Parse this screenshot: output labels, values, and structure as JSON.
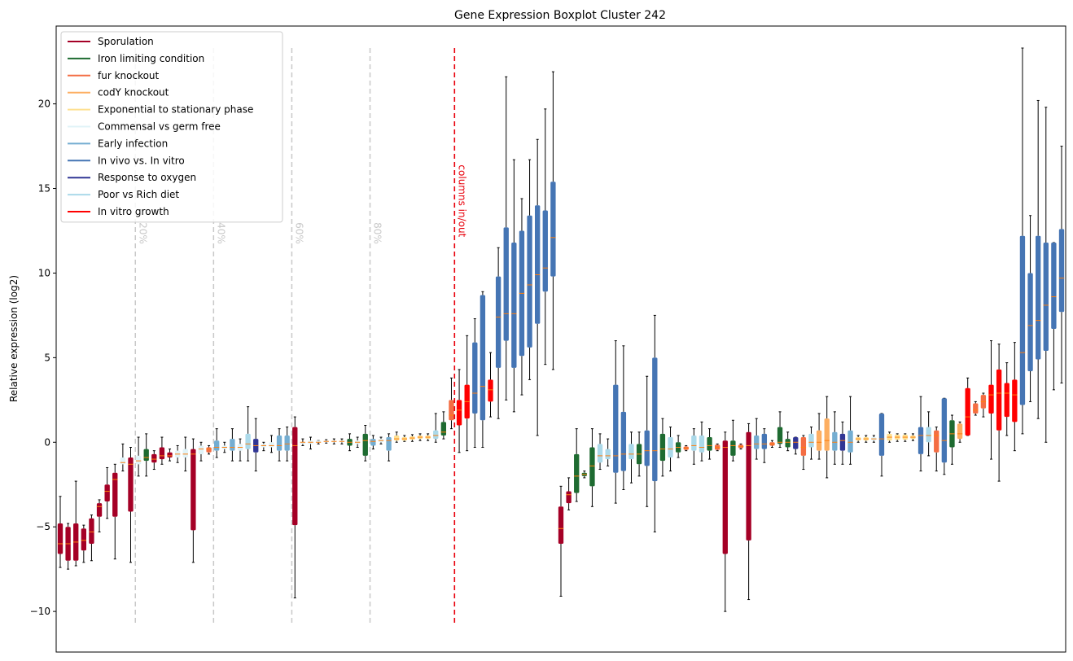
{
  "chart_data": {
    "type": "boxplot",
    "title": "Gene Expression Boxplot Cluster 242",
    "ylabel": "Relative expression (log2)",
    "ylim": [
      -12.4,
      24.6
    ],
    "yticks": [
      -10,
      -5,
      0,
      5,
      10,
      15,
      20
    ],
    "ytick_labels": [
      "−10",
      "−5",
      "0",
      "5",
      "10",
      "15",
      "20"
    ],
    "percentile_lines": [
      {
        "label": "20%",
        "at_box": 9.6
      },
      {
        "label": "40%",
        "at_box": 19.6
      },
      {
        "label": "60%",
        "at_box": 29.6
      },
      {
        "label": "80%",
        "at_box": 39.6
      }
    ],
    "split_line": {
      "label": "columns in/out",
      "at_box": 50.4,
      "color": "#e8000b"
    },
    "legend": {
      "placement": "top-left",
      "entries": [
        {
          "label": "Sporulation",
          "color": "#a50026"
        },
        {
          "label": "Iron limiting condition",
          "color": "#1e6b31"
        },
        {
          "label": "fur knockout",
          "color": "#f46d43"
        },
        {
          "label": "codY knockout",
          "color": "#fdae61"
        },
        {
          "label": "Exponential to stationary phase",
          "color": "#fee090"
        },
        {
          "label": "Commensal vs germ free",
          "color": "#e0f3f8"
        },
        {
          "label": "Early infection",
          "color": "#74add1"
        },
        {
          "label": "In vivo vs. In vitro",
          "color": "#4575b4"
        },
        {
          "label": "Response to oxygen",
          "color": "#313695"
        },
        {
          "label": "Poor vs Rich diet",
          "color": "#abd9e9"
        },
        {
          "label": "In vitro growth",
          "color": "#ff0000"
        }
      ]
    },
    "median_color": "#ff7f0e",
    "boxes": [
      {
        "c": "#a50026",
        "q1": -6.6,
        "med": -6.0,
        "q3": -4.8,
        "lo": -7.4,
        "hi": -3.2
      },
      {
        "c": "#a50026",
        "q1": -7.0,
        "med": -6.0,
        "q3": -5.0,
        "lo": -7.5,
        "hi": -4.8
      },
      {
        "c": "#a50026",
        "q1": -7.0,
        "med": -5.9,
        "q3": -4.8,
        "lo": -7.3,
        "hi": -2.3
      },
      {
        "c": "#a50026",
        "q1": -6.4,
        "med": -5.8,
        "q3": -5.1,
        "lo": -7.1,
        "hi": -4.9
      },
      {
        "c": "#a50026",
        "q1": -6.0,
        "med": -5.3,
        "q3": -4.5,
        "lo": -7.0,
        "hi": -4.3
      },
      {
        "c": "#a50026",
        "q1": -4.4,
        "med": -3.8,
        "q3": -3.6,
        "lo": -5.3,
        "hi": -3.4
      },
      {
        "c": "#a50026",
        "q1": -3.5,
        "med": -2.9,
        "q3": -2.5,
        "lo": -4.5,
        "hi": -1.5
      },
      {
        "c": "#a50026",
        "q1": -4.4,
        "med": -2.2,
        "q3": -1.8,
        "lo": -6.9,
        "hi": -1.3
      },
      {
        "c": "#e0f3f8",
        "q1": -1.3,
        "med": -1.2,
        "q3": -0.9,
        "lo": -1.7,
        "hi": -0.1
      },
      {
        "c": "#a50026",
        "q1": -4.1,
        "med": -1.3,
        "q3": -0.9,
        "lo": -7.1,
        "hi": -0.3
      },
      {
        "c": "#e0f3f8",
        "q1": -1.3,
        "med": -1.1,
        "q3": -0.8,
        "lo": -2.0,
        "hi": 0.3
      },
      {
        "c": "#1e6b31",
        "q1": -1.1,
        "med": -0.9,
        "q3": -0.4,
        "lo": -2.0,
        "hi": 0.5
      },
      {
        "c": "#a50026",
        "q1": -1.2,
        "med": -1.0,
        "q3": -0.7,
        "lo": -1.6,
        "hi": -0.5
      },
      {
        "c": "#a50026",
        "q1": -1.0,
        "med": -0.8,
        "q3": -0.3,
        "lo": -1.3,
        "hi": 0.3
      },
      {
        "c": "#a50026",
        "q1": -0.9,
        "med": -0.8,
        "q3": -0.6,
        "lo": -1.1,
        "hi": -0.4
      },
      {
        "c": "#e0f3f8",
        "q1": -0.9,
        "med": -0.7,
        "q3": -0.5,
        "lo": -1.2,
        "hi": -0.2
      },
      {
        "c": "#e0f3f8",
        "q1": -0.9,
        "med": -0.7,
        "q3": -0.4,
        "lo": -1.7,
        "hi": 0.3
      },
      {
        "c": "#a50026",
        "q1": -5.2,
        "med": -0.7,
        "q3": -0.4,
        "lo": -7.1,
        "hi": 0.2
      },
      {
        "c": "#e0f3f8",
        "q1": -0.7,
        "med": -0.4,
        "q3": -0.2,
        "lo": -1.1,
        "hi": 0.0
      },
      {
        "c": "#f46d43",
        "q1": -0.6,
        "med": -0.4,
        "q3": -0.3,
        "lo": -0.7,
        "hi": -0.2
      },
      {
        "c": "#74add1",
        "q1": -0.5,
        "med": -0.3,
        "q3": 0.1,
        "lo": -0.9,
        "hi": 0.8
      },
      {
        "c": "#e0f3f8",
        "q1": -0.4,
        "med": -0.3,
        "q3": -0.2,
        "lo": -0.6,
        "hi": 0.0
      },
      {
        "c": "#74add1",
        "q1": -0.5,
        "med": -0.3,
        "q3": 0.2,
        "lo": -1.1,
        "hi": 0.8
      },
      {
        "c": "#e0f3f8",
        "q1": -0.5,
        "med": -0.3,
        "q3": -0.1,
        "lo": -1.1,
        "hi": 0.2
      },
      {
        "c": "#abd9e9",
        "q1": -0.4,
        "med": -0.1,
        "q3": 0.5,
        "lo": -1.1,
        "hi": 2.1
      },
      {
        "c": "#313695",
        "q1": -0.6,
        "med": -0.2,
        "q3": 0.2,
        "lo": -1.7,
        "hi": 1.4
      },
      {
        "c": "#e0f3f8",
        "q1": -0.3,
        "med": -0.2,
        "q3": -0.1,
        "lo": -0.5,
        "hi": 0.0
      },
      {
        "c": "#e0f3f8",
        "q1": -0.3,
        "med": -0.2,
        "q3": 0.0,
        "lo": -0.6,
        "hi": 0.4
      },
      {
        "c": "#74add1",
        "q1": -0.5,
        "med": -0.2,
        "q3": 0.4,
        "lo": -1.1,
        "hi": 0.8
      },
      {
        "c": "#74add1",
        "q1": -0.5,
        "med": -0.1,
        "q3": 0.4,
        "lo": -1.1,
        "hi": 0.9
      },
      {
        "c": "#a50026",
        "q1": -4.9,
        "med": -0.2,
        "q3": 0.9,
        "lo": -9.2,
        "hi": 1.5
      },
      {
        "c": "#e0f3f8",
        "q1": -0.1,
        "med": 0.0,
        "q3": 0.0,
        "lo": -0.2,
        "hi": 0.2
      },
      {
        "c": "#e0f3f8",
        "q1": -0.1,
        "med": 0.0,
        "q3": 0.1,
        "lo": -0.4,
        "hi": 0.3
      },
      {
        "c": "#e0f3f8",
        "q1": 0.0,
        "med": 0.0,
        "q3": 0.1,
        "lo": -0.1,
        "hi": 0.1
      },
      {
        "c": "#e0f3f8",
        "q1": 0.0,
        "med": 0.05,
        "q3": 0.1,
        "lo": -0.05,
        "hi": 0.15
      },
      {
        "c": "#e0f3f8",
        "q1": 0.0,
        "med": 0.05,
        "q3": 0.1,
        "lo": -0.1,
        "hi": 0.2
      },
      {
        "c": "#e0f3f8",
        "q1": 0.0,
        "med": 0.05,
        "q3": 0.1,
        "lo": -0.1,
        "hi": 0.2
      },
      {
        "c": "#1e6b31",
        "q1": -0.2,
        "med": 0.0,
        "q3": 0.2,
        "lo": -0.5,
        "hi": 0.5
      },
      {
        "c": "#e0f3f8",
        "q1": -0.1,
        "med": 0.0,
        "q3": 0.1,
        "lo": -0.3,
        "hi": 0.3
      },
      {
        "c": "#1e6b31",
        "q1": -0.8,
        "med": 0.1,
        "q3": 0.5,
        "lo": -1.1,
        "hi": 1.0
      },
      {
        "c": "#74add1",
        "q1": -0.2,
        "med": 0.05,
        "q3": 0.2,
        "lo": -0.4,
        "hi": 0.4
      },
      {
        "c": "#e0f3f8",
        "q1": 0.0,
        "med": 0.1,
        "q3": 0.2,
        "lo": -0.1,
        "hi": 0.3
      },
      {
        "c": "#74add1",
        "q1": -0.5,
        "med": 0.1,
        "q3": 0.3,
        "lo": -1.1,
        "hi": 0.5
      },
      {
        "c": "#fee090",
        "q1": 0.1,
        "med": 0.2,
        "q3": 0.4,
        "lo": 0.0,
        "hi": 0.6
      },
      {
        "c": "#fee090",
        "q1": 0.1,
        "med": 0.2,
        "q3": 0.3,
        "lo": 0.05,
        "hi": 0.4
      },
      {
        "c": "#fee090",
        "q1": 0.15,
        "med": 0.25,
        "q3": 0.35,
        "lo": 0.05,
        "hi": 0.45
      },
      {
        "c": "#fee090",
        "q1": 0.2,
        "med": 0.3,
        "q3": 0.4,
        "lo": 0.1,
        "hi": 0.5
      },
      {
        "c": "#fee090",
        "q1": 0.2,
        "med": 0.3,
        "q3": 0.4,
        "lo": 0.1,
        "hi": 0.5
      },
      {
        "c": "#abd9e9",
        "q1": 0.2,
        "med": 0.4,
        "q3": 0.7,
        "lo": 0.0,
        "hi": 1.7
      },
      {
        "c": "#1e6b31",
        "q1": 0.4,
        "med": 0.6,
        "q3": 1.2,
        "lo": 0.2,
        "hi": 1.8
      },
      {
        "c": "#f46d43",
        "q1": 1.3,
        "med": 1.6,
        "q3": 2.5,
        "lo": 0.8,
        "hi": 3.8
      },
      {
        "c": "#ff0000",
        "q1": 1.0,
        "med": 1.9,
        "q3": 2.5,
        "lo": -0.6,
        "hi": 4.3
      },
      {
        "c": "#ff0000",
        "q1": 1.4,
        "med": 2.4,
        "q3": 3.4,
        "lo": -0.5,
        "hi": 6.3
      },
      {
        "c": "#4575b4",
        "q1": 1.7,
        "med": 2.9,
        "q3": 5.9,
        "lo": -0.3,
        "hi": 7.3
      },
      {
        "c": "#4575b4",
        "q1": 1.3,
        "med": 3.3,
        "q3": 8.7,
        "lo": -0.3,
        "hi": 8.9
      },
      {
        "c": "#ff0000",
        "q1": 2.4,
        "med": 3.1,
        "q3": 3.7,
        "lo": 1.5,
        "hi": 5.3
      },
      {
        "c": "#4575b4",
        "q1": 4.4,
        "med": 7.4,
        "q3": 9.8,
        "lo": 1.4,
        "hi": 11.5
      },
      {
        "c": "#4575b4",
        "q1": 6.0,
        "med": 7.6,
        "q3": 12.7,
        "lo": 2.5,
        "hi": 21.6
      },
      {
        "c": "#4575b4",
        "q1": 4.4,
        "med": 7.6,
        "q3": 11.8,
        "lo": 1.8,
        "hi": 16.7
      },
      {
        "c": "#4575b4",
        "q1": 5.1,
        "med": 8.8,
        "q3": 12.5,
        "lo": 2.8,
        "hi": 14.4
      },
      {
        "c": "#4575b4",
        "q1": 5.6,
        "med": 9.3,
        "q3": 13.4,
        "lo": 3.7,
        "hi": 16.7
      },
      {
        "c": "#4575b4",
        "q1": 7.0,
        "med": 9.9,
        "q3": 14.0,
        "lo": 0.4,
        "hi": 17.9
      },
      {
        "c": "#4575b4",
        "q1": 8.9,
        "med": 10.3,
        "q3": 13.7,
        "lo": 4.6,
        "hi": 19.7
      },
      {
        "c": "#4575b4",
        "q1": 9.8,
        "med": 12.1,
        "q3": 15.4,
        "lo": 4.3,
        "hi": 21.9
      },
      {
        "c": "#a50026",
        "q1": -6.0,
        "med": -5.1,
        "q3": -3.8,
        "lo": -9.1,
        "hi": -2.6
      },
      {
        "c": "#a50026",
        "q1": -3.6,
        "med": -3.1,
        "q3": -2.9,
        "lo": -4.0,
        "hi": -2.1
      },
      {
        "c": "#1e6b31",
        "q1": -3.0,
        "med": -2.0,
        "q3": -0.7,
        "lo": -3.5,
        "hi": 0.8
      },
      {
        "c": "#1e6b31",
        "q1": -2.0,
        "med": -1.9,
        "q3": -1.8,
        "lo": -2.1,
        "hi": -1.7
      },
      {
        "c": "#1e6b31",
        "q1": -2.6,
        "med": -1.4,
        "q3": -0.3,
        "lo": -3.8,
        "hi": 0.8
      },
      {
        "c": "#abd9e9",
        "q1": -1.2,
        "med": -0.8,
        "q3": -0.1,
        "lo": -1.6,
        "hi": 0.5
      },
      {
        "c": "#abd9e9",
        "q1": -1.0,
        "med": -0.8,
        "q3": -0.4,
        "lo": -1.4,
        "hi": 0.2
      },
      {
        "c": "#4575b4",
        "q1": -1.8,
        "med": -0.8,
        "q3": 3.4,
        "lo": -3.6,
        "hi": 6.0
      },
      {
        "c": "#4575b4",
        "q1": -1.7,
        "med": -0.7,
        "q3": 1.8,
        "lo": -2.8,
        "hi": 5.7
      },
      {
        "c": "#abd9e9",
        "q1": -1.0,
        "med": -0.7,
        "q3": -0.1,
        "lo": -2.4,
        "hi": 0.6
      },
      {
        "c": "#1e6b31",
        "q1": -1.3,
        "med": -0.7,
        "q3": -0.1,
        "lo": -2.0,
        "hi": 0.6
      },
      {
        "c": "#4575b4",
        "q1": -1.4,
        "med": -0.5,
        "q3": 0.7,
        "lo": -3.8,
        "hi": 3.9
      },
      {
        "c": "#4575b4",
        "q1": -2.3,
        "med": -0.5,
        "q3": 5.0,
        "lo": -5.3,
        "hi": 7.5
      },
      {
        "c": "#1e6b31",
        "q1": -1.1,
        "med": -0.4,
        "q3": 0.5,
        "lo": -2.0,
        "hi": 1.4
      },
      {
        "c": "#abd9e9",
        "q1": -0.9,
        "med": -0.4,
        "q3": 0.3,
        "lo": -1.7,
        "hi": 0.9
      },
      {
        "c": "#1e6b31",
        "q1": -0.6,
        "med": -0.3,
        "q3": 0.0,
        "lo": -0.9,
        "hi": 0.4
      },
      {
        "c": "#f46d43",
        "q1": -0.45,
        "med": -0.35,
        "q3": -0.25,
        "lo": -0.5,
        "hi": -0.2
      },
      {
        "c": "#abd9e9",
        "q1": -0.5,
        "med": -0.2,
        "q3": 0.4,
        "lo": -1.3,
        "hi": 0.8
      },
      {
        "c": "#abd9e9",
        "q1": -0.6,
        "med": -0.3,
        "q3": 0.4,
        "lo": -1.1,
        "hi": 1.2
      },
      {
        "c": "#1e6b31",
        "q1": -0.5,
        "med": -0.2,
        "q3": 0.3,
        "lo": -1.0,
        "hi": 0.8
      },
      {
        "c": "#f46d43",
        "q1": -0.45,
        "med": -0.3,
        "q3": -0.15,
        "lo": -0.5,
        "hi": -0.1
      },
      {
        "c": "#a50026",
        "q1": -6.6,
        "med": -0.3,
        "q3": 0.1,
        "lo": -10.0,
        "hi": 0.6
      },
      {
        "c": "#1e6b31",
        "q1": -0.8,
        "med": -0.2,
        "q3": 0.1,
        "lo": -1.1,
        "hi": 1.3
      },
      {
        "c": "#f46d43",
        "q1": -0.35,
        "med": -0.25,
        "q3": -0.15,
        "lo": -0.4,
        "hi": -0.1
      },
      {
        "c": "#a50026",
        "q1": -5.8,
        "med": -0.2,
        "q3": 0.6,
        "lo": -9.3,
        "hi": 1.1
      },
      {
        "c": "#74add1",
        "q1": -0.4,
        "med": -0.1,
        "q3": 0.4,
        "lo": -1.0,
        "hi": 1.4
      },
      {
        "c": "#4575b4",
        "q1": -0.4,
        "med": -0.1,
        "q3": 0.5,
        "lo": -1.2,
        "hi": 0.8
      },
      {
        "c": "#f46d43",
        "q1": -0.2,
        "med": -0.1,
        "q3": 0.0,
        "lo": -0.3,
        "hi": 0.1
      },
      {
        "c": "#1e6b31",
        "q1": -0.1,
        "med": 0.0,
        "q3": 0.9,
        "lo": -0.3,
        "hi": 1.8
      },
      {
        "c": "#1e6b31",
        "q1": -0.3,
        "med": 0.0,
        "q3": 0.2,
        "lo": -0.5,
        "hi": 0.6
      },
      {
        "c": "#313695",
        "q1": -0.4,
        "med": 0.0,
        "q3": 0.3,
        "lo": -0.7,
        "hi": 0.3
      },
      {
        "c": "#f46d43",
        "q1": -0.8,
        "med": -0.3,
        "q3": 0.3,
        "lo": -1.6,
        "hi": 0.4
      },
      {
        "c": "#abd9e9",
        "q1": -0.3,
        "med": 0.0,
        "q3": 0.5,
        "lo": -1.0,
        "hi": 0.9
      },
      {
        "c": "#fdae61",
        "q1": -0.5,
        "med": 0.0,
        "q3": 0.7,
        "lo": -1.0,
        "hi": 1.7
      },
      {
        "c": "#fdae61",
        "q1": -0.5,
        "med": 0.1,
        "q3": 1.4,
        "lo": -2.1,
        "hi": 2.7
      },
      {
        "c": "#74add1",
        "q1": -0.5,
        "med": 0.0,
        "q3": 0.6,
        "lo": -1.3,
        "hi": 1.8
      },
      {
        "c": "#313695",
        "q1": -0.5,
        "med": 0.1,
        "q3": 0.5,
        "lo": -1.3,
        "hi": 1.2
      },
      {
        "c": "#74add1",
        "q1": -0.6,
        "med": 0.0,
        "q3": 0.7,
        "lo": -1.3,
        "hi": 2.7
      },
      {
        "c": "#fee090",
        "q1": 0.1,
        "med": 0.2,
        "q3": 0.3,
        "lo": 0.0,
        "hi": 0.4
      },
      {
        "c": "#fee090",
        "q1": 0.1,
        "med": 0.2,
        "q3": 0.3,
        "lo": 0.0,
        "hi": 0.4
      },
      {
        "c": "#e0f3f8",
        "q1": 0.1,
        "med": 0.2,
        "q3": 0.3,
        "lo": 0.0,
        "hi": 0.4
      },
      {
        "c": "#4575b4",
        "q1": -0.8,
        "med": 0.2,
        "q3": 1.7,
        "lo": -2.0,
        "hi": 1.7
      },
      {
        "c": "#fee090",
        "q1": 0.1,
        "med": 0.3,
        "q3": 0.5,
        "lo": 0.0,
        "hi": 0.6
      },
      {
        "c": "#fee090",
        "q1": 0.15,
        "med": 0.3,
        "q3": 0.45,
        "lo": 0.05,
        "hi": 0.5
      },
      {
        "c": "#fee090",
        "q1": 0.15,
        "med": 0.3,
        "q3": 0.45,
        "lo": 0.05,
        "hi": 0.5
      },
      {
        "c": "#fee090",
        "q1": 0.2,
        "med": 0.3,
        "q3": 0.4,
        "lo": 0.1,
        "hi": 0.5
      },
      {
        "c": "#4575b4",
        "q1": -0.7,
        "med": 0.4,
        "q3": 0.9,
        "lo": -1.7,
        "hi": 2.7
      },
      {
        "c": "#abd9e9",
        "q1": 0.0,
        "med": 0.4,
        "q3": 0.9,
        "lo": -0.8,
        "hi": 1.8
      },
      {
        "c": "#f46d43",
        "q1": -0.6,
        "med": 0.4,
        "q3": 0.7,
        "lo": -1.7,
        "hi": 0.9
      },
      {
        "c": "#4575b4",
        "q1": -1.2,
        "med": 0.1,
        "q3": 2.6,
        "lo": -1.9,
        "hi": 2.6
      },
      {
        "c": "#1e6b31",
        "q1": -0.3,
        "med": 0.5,
        "q3": 1.3,
        "lo": -1.3,
        "hi": 1.6
      },
      {
        "c": "#fdae61",
        "q1": 0.2,
        "med": 0.5,
        "q3": 1.1,
        "lo": 0.0,
        "hi": 1.2
      },
      {
        "c": "#ff0000",
        "q1": 0.4,
        "med": 1.5,
        "q3": 3.2,
        "lo": 0.4,
        "hi": 3.8
      },
      {
        "c": "#f46d43",
        "q1": 1.7,
        "med": 1.9,
        "q3": 2.3,
        "lo": 1.6,
        "hi": 2.4
      },
      {
        "c": "#f46d43",
        "q1": 2.0,
        "med": 2.4,
        "q3": 2.8,
        "lo": 1.5,
        "hi": 2.9
      },
      {
        "c": "#ff0000",
        "q1": 1.7,
        "med": 2.8,
        "q3": 3.4,
        "lo": -1.0,
        "hi": 6.0
      },
      {
        "c": "#ff0000",
        "q1": 0.7,
        "med": 2.9,
        "q3": 4.3,
        "lo": -2.3,
        "hi": 5.8
      },
      {
        "c": "#ff0000",
        "q1": 1.5,
        "med": 2.9,
        "q3": 3.5,
        "lo": 0.4,
        "hi": 4.7
      },
      {
        "c": "#ff0000",
        "q1": 1.2,
        "med": 2.8,
        "q3": 3.7,
        "lo": -0.5,
        "hi": 5.9
      },
      {
        "c": "#4575b4",
        "q1": 2.2,
        "med": 5.3,
        "q3": 12.2,
        "lo": 0.5,
        "hi": 23.3
      },
      {
        "c": "#4575b4",
        "q1": 4.2,
        "med": 6.9,
        "q3": 10.0,
        "lo": 2.4,
        "hi": 13.4
      },
      {
        "c": "#4575b4",
        "q1": 4.9,
        "med": 7.2,
        "q3": 12.2,
        "lo": 1.4,
        "hi": 20.2
      },
      {
        "c": "#4575b4",
        "q1": 5.4,
        "med": 8.1,
        "q3": 11.8,
        "lo": 0.0,
        "hi": 19.8
      },
      {
        "c": "#4575b4",
        "q1": 6.7,
        "med": 8.6,
        "q3": 11.8,
        "lo": 3.1,
        "hi": 11.8
      },
      {
        "c": "#4575b4",
        "q1": 7.7,
        "med": 9.7,
        "q3": 12.6,
        "lo": 3.5,
        "hi": 17.5
      }
    ]
  }
}
